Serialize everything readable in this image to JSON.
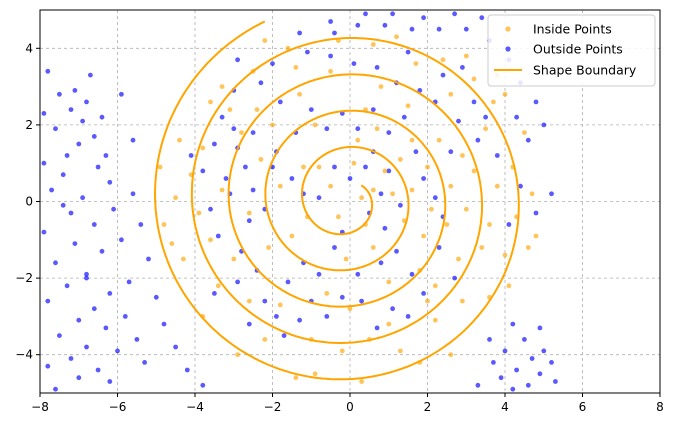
{
  "chart_data": {
    "type": "scatter",
    "title": "",
    "xlabel": "",
    "ylabel": "",
    "xlim": [
      -8,
      8
    ],
    "ylim": [
      -5,
      5
    ],
    "x_ticks": [
      -8,
      -6,
      -4,
      -2,
      0,
      2,
      4,
      6,
      8
    ],
    "y_ticks": [
      -4,
      -2,
      0,
      2,
      4
    ],
    "x_tick_labels": [
      "−8",
      "−6",
      "−4",
      "−2",
      "0",
      "2",
      "4",
      "6",
      "8"
    ],
    "y_tick_labels": [
      "−4",
      "−2",
      "0",
      "2",
      "4"
    ],
    "grid": true,
    "legend_position": "top-right",
    "colors": {
      "inside": "#ffa500",
      "outside": "#0000ff",
      "boundary": "#ffa500",
      "grid": "#b0b0b0"
    },
    "legend": [
      {
        "label": "Inside Points",
        "kind": "point",
        "color": "#ffa500"
      },
      {
        "label": "Outside Points",
        "kind": "point",
        "color": "#0000ff"
      },
      {
        "label": "Shape Boundary",
        "kind": "line",
        "color": "#ffa500"
      }
    ],
    "boundary": {
      "name": "Shape Boundary",
      "shape": "archimedean spiral",
      "center": [
        -0.1,
        0.05
      ],
      "start_point": [
        0.4,
        0.25
      ],
      "end_point": [
        -2.2,
        4.7
      ],
      "approx_spacing_per_turn": 0.95
    },
    "series": [
      {
        "name": "Inside Points",
        "points": [
          [
            0.3,
            0.1
          ],
          [
            0.6,
            0.3
          ],
          [
            -0.5,
            0.4
          ],
          [
            0.1,
            1.0
          ],
          [
            0.4,
            -0.6
          ],
          [
            -0.3,
            -0.4
          ],
          [
            0.9,
            0.8
          ],
          [
            1.1,
            0.2
          ],
          [
            -0.8,
            0.9
          ],
          [
            0.6,
            -1.2
          ],
          [
            -1.1,
            -0.4
          ],
          [
            1.4,
            -0.5
          ],
          [
            0.2,
            1.6
          ],
          [
            -1.2,
            0.9
          ],
          [
            1.3,
            1.1
          ],
          [
            1.6,
            0.3
          ],
          [
            -1.5,
            -0.9
          ],
          [
            -0.1,
            -1.5
          ],
          [
            0.7,
            1.9
          ],
          [
            1.9,
            -0.9
          ],
          [
            -1.8,
            0.4
          ],
          [
            2.0,
            0.9
          ],
          [
            -0.9,
            2.0
          ],
          [
            1.0,
            -2.1
          ],
          [
            2.1,
            -0.2
          ],
          [
            -2.1,
            -1.2
          ],
          [
            0.4,
            2.4
          ],
          [
            2.3,
            1.6
          ],
          [
            -2.3,
            1.1
          ],
          [
            1.8,
            -1.8
          ],
          [
            -0.6,
            -2.4
          ],
          [
            2.5,
            -0.6
          ],
          [
            -2.0,
            2.0
          ],
          [
            2.6,
            0.4
          ],
          [
            -2.6,
            -0.3
          ],
          [
            1.5,
            2.5
          ],
          [
            0.0,
            -2.8
          ],
          [
            2.8,
            -1.5
          ],
          [
            -1.3,
            2.8
          ],
          [
            2.9,
            1.2
          ],
          [
            -2.8,
            1.8
          ],
          [
            0.8,
            3.0
          ],
          [
            -3.0,
            -1.5
          ],
          [
            2.0,
            -2.6
          ],
          [
            3.0,
            -0.2
          ],
          [
            -1.8,
            -2.7
          ],
          [
            3.2,
            0.8
          ],
          [
            -3.3,
            0.3
          ],
          [
            1.0,
            -3.2
          ],
          [
            2.6,
            2.8
          ],
          [
            -0.5,
            3.4
          ],
          [
            3.4,
            -1.2
          ],
          [
            -3.1,
            2.4
          ],
          [
            -2.6,
            -2.6
          ],
          [
            3.5,
            1.9
          ],
          [
            0.5,
            -3.6
          ],
          [
            -3.6,
            -1.0
          ],
          [
            3.6,
            -0.6
          ],
          [
            2.2,
            -3.1
          ],
          [
            -1.4,
            3.5
          ],
          [
            1.7,
            3.6
          ],
          [
            -3.8,
            1.4
          ],
          [
            -1.0,
            -3.6
          ],
          [
            3.8,
            0.4
          ],
          [
            -3.4,
            -2.2
          ],
          [
            2.9,
            -2.6
          ],
          [
            -3.9,
            -0.3
          ],
          [
            3.7,
            2.6
          ],
          [
            -0.2,
            -3.9
          ],
          [
            1.3,
            -3.9
          ],
          [
            4.0,
            -1.4
          ],
          [
            -2.5,
            3.4
          ],
          [
            -4.1,
            0.7
          ],
          [
            3.2,
            3.2
          ],
          [
            -2.2,
            -3.6
          ],
          [
            4.2,
            0.9
          ],
          [
            2.4,
            3.7
          ],
          [
            -4.3,
            -1.5
          ],
          [
            0.6,
            4.1
          ],
          [
            3.6,
            -2.5
          ],
          [
            -3.3,
            3.0
          ],
          [
            4.3,
            -0.4
          ],
          [
            1.8,
            -4.2
          ],
          [
            -4.5,
            0.1
          ],
          [
            -1.6,
            4.0
          ],
          [
            4.5,
            1.8
          ],
          [
            -0.9,
            -4.5
          ],
          [
            4.1,
            -2.2
          ],
          [
            -4.4,
            1.6
          ],
          [
            3.0,
            3.8
          ],
          [
            -2.9,
            -4.0
          ],
          [
            4.6,
            -1.2
          ],
          [
            0.3,
            -4.7
          ],
          [
            -4.6,
            -1.1
          ],
          [
            2.6,
            -4.0
          ],
          [
            -3.8,
            -3.0
          ],
          [
            4.7,
            0.2
          ],
          [
            -1.4,
            -4.6
          ],
          [
            3.8,
            3.3
          ],
          [
            -4.8,
            -0.6
          ],
          [
            1.2,
            4.3
          ],
          [
            -3.6,
            2.6
          ],
          [
            4.0,
            2.8
          ],
          [
            -0.3,
            4.2
          ],
          [
            -2.2,
            4.2
          ],
          [
            4.8,
            -0.9
          ],
          [
            -4.9,
            0.9
          ],
          [
            2.2,
            -2.2
          ],
          [
            -2.4,
            2.4
          ],
          [
            1.6,
            1.6
          ]
        ]
      },
      {
        "name": "Outside Points",
        "points": [
          [
            -7.8,
            3.4
          ],
          [
            -7.5,
            2.8
          ],
          [
            -7.2,
            2.4
          ],
          [
            -6.9,
            2.1
          ],
          [
            -7.6,
            1.9
          ],
          [
            -7.0,
            1.5
          ],
          [
            -7.3,
            1.2
          ],
          [
            -6.6,
            1.7
          ],
          [
            -7.9,
            1.0
          ],
          [
            -6.8,
            2.6
          ],
          [
            -7.4,
            0.7
          ],
          [
            -6.5,
            0.9
          ],
          [
            -7.7,
            0.3
          ],
          [
            -6.9,
            0.1
          ],
          [
            -6.2,
            0.5
          ],
          [
            -7.2,
            -0.3
          ],
          [
            -6.6,
            -0.6
          ],
          [
            -7.9,
            -0.8
          ],
          [
            -6.1,
            -0.2
          ],
          [
            -7.1,
            -1.1
          ],
          [
            -6.4,
            -1.3
          ],
          [
            -7.6,
            -1.6
          ],
          [
            -6.8,
            -1.9
          ],
          [
            -5.9,
            -1.0
          ],
          [
            -7.3,
            -2.2
          ],
          [
            -6.2,
            -2.4
          ],
          [
            -7.8,
            -2.6
          ],
          [
            -6.6,
            -2.8
          ],
          [
            -5.7,
            -2.1
          ],
          [
            -7.0,
            -3.1
          ],
          [
            -6.3,
            -3.3
          ],
          [
            -7.5,
            -3.5
          ],
          [
            -5.8,
            -3.0
          ],
          [
            -6.8,
            -3.8
          ],
          [
            -7.2,
            -4.1
          ],
          [
            -6.0,
            -3.9
          ],
          [
            -7.8,
            -4.3
          ],
          [
            -6.5,
            -4.4
          ],
          [
            -5.5,
            -3.6
          ],
          [
            -7.0,
            -4.6
          ],
          [
            -6.2,
            -4.7
          ],
          [
            -7.6,
            -4.9
          ],
          [
            -5.3,
            -4.2
          ],
          [
            -6.8,
            -2.0
          ],
          [
            -7.4,
            -0.1
          ],
          [
            -6.4,
            2.2
          ],
          [
            -7.1,
            2.9
          ],
          [
            -6.7,
            3.3
          ],
          [
            -7.9,
            2.3
          ],
          [
            -6.3,
            1.2
          ],
          [
            -5.6,
            0.2
          ],
          [
            -5.4,
            -0.6
          ],
          [
            -5.2,
            -1.5
          ],
          [
            -5.0,
            -2.5
          ],
          [
            -4.8,
            -3.2
          ],
          [
            -4.5,
            -3.8
          ],
          [
            -4.2,
            -4.4
          ],
          [
            -3.8,
            -4.8
          ],
          [
            -5.6,
            1.6
          ],
          [
            -5.9,
            2.8
          ],
          [
            -4.1,
            1.2
          ],
          [
            -3.8,
            0.8
          ],
          [
            -3.5,
            1.5
          ],
          [
            -3.2,
            0.6
          ],
          [
            -3.6,
            -0.2
          ],
          [
            -3.0,
            1.9
          ],
          [
            -3.3,
            2.2
          ],
          [
            -2.9,
            1.4
          ],
          [
            -2.7,
            0.9
          ],
          [
            -3.1,
            0.2
          ],
          [
            -2.6,
            -0.5
          ],
          [
            -3.4,
            -0.9
          ],
          [
            -2.8,
            -1.3
          ],
          [
            -2.5,
            1.8
          ],
          [
            -2.4,
            -1.8
          ],
          [
            -2.9,
            -2.1
          ],
          [
            -3.5,
            -2.4
          ],
          [
            -2.2,
            -2.6
          ],
          [
            -1.9,
            -3.0
          ],
          [
            -2.6,
            -3.2
          ],
          [
            -1.7,
            -3.5
          ],
          [
            -1.3,
            -3.1
          ],
          [
            -1.0,
            -2.6
          ],
          [
            -0.6,
            -3.0
          ],
          [
            -0.2,
            -2.5
          ],
          [
            0.3,
            -2.6
          ],
          [
            0.7,
            -3.3
          ],
          [
            1.1,
            -2.8
          ],
          [
            1.5,
            -3.0
          ],
          [
            1.9,
            -2.4
          ],
          [
            -1.6,
            -2.1
          ],
          [
            -1.2,
            -1.6
          ],
          [
            -0.8,
            -1.9
          ],
          [
            -0.4,
            -1.2
          ],
          [
            0.2,
            -1.9
          ],
          [
            0.8,
            -1.6
          ],
          [
            1.2,
            -1.3
          ],
          [
            1.6,
            -1.9
          ],
          [
            2.3,
            -1.2
          ],
          [
            2.7,
            -2.0
          ],
          [
            -1.5,
            0.6
          ],
          [
            -1.9,
            1.3
          ],
          [
            -1.4,
            1.8
          ],
          [
            -1.0,
            2.4
          ],
          [
            -0.6,
            1.9
          ],
          [
            -0.2,
            2.3
          ],
          [
            0.2,
            1.9
          ],
          [
            0.6,
            2.4
          ],
          [
            1.0,
            1.8
          ],
          [
            1.4,
            2.2
          ],
          [
            -0.8,
            0.1
          ],
          [
            -0.4,
            0.9
          ],
          [
            0.0,
            0.6
          ],
          [
            0.4,
            0.9
          ],
          [
            0.8,
            0.2
          ],
          [
            0.5,
            -0.3
          ],
          [
            -0.2,
            -0.8
          ],
          [
            0.9,
            -0.7
          ],
          [
            1.3,
            -0.1
          ],
          [
            -1.2,
            0.2
          ],
          [
            1.7,
            1.3
          ],
          [
            1.9,
            0.6
          ],
          [
            2.2,
            0.1
          ],
          [
            2.4,
            -0.4
          ],
          [
            2.6,
            1.3
          ],
          [
            2.8,
            2.1
          ],
          [
            2.2,
            2.6
          ],
          [
            1.8,
            2.9
          ],
          [
            1.2,
            3.1
          ],
          [
            0.7,
            3.5
          ],
          [
            0.1,
            3.6
          ],
          [
            -0.5,
            3.8
          ],
          [
            -1.1,
            3.9
          ],
          [
            1.5,
            3.9
          ],
          [
            2.4,
            3.3
          ],
          [
            2.9,
            3.5
          ],
          [
            3.2,
            2.6
          ],
          [
            3.5,
            2.2
          ],
          [
            3.3,
            1.6
          ],
          [
            3.8,
            1.2
          ],
          [
            -0.4,
            4.4
          ],
          [
            0.2,
            4.6
          ],
          [
            0.9,
            4.6
          ],
          [
            1.6,
            4.5
          ],
          [
            2.3,
            4.5
          ],
          [
            3.0,
            4.5
          ],
          [
            3.6,
            4.2
          ],
          [
            4.1,
            3.7
          ],
          [
            3.4,
            4.8
          ],
          [
            2.7,
            4.9
          ],
          [
            1.9,
            4.8
          ],
          [
            1.1,
            4.9
          ],
          [
            0.4,
            4.9
          ],
          [
            -0.5,
            4.7
          ],
          [
            -1.3,
            4.4
          ],
          [
            4.4,
            3.1
          ],
          [
            4.8,
            2.6
          ],
          [
            4.3,
            2.2
          ],
          [
            4.6,
            1.6
          ],
          [
            5.0,
            2.0
          ],
          [
            4.1,
            -0.6
          ],
          [
            4.4,
            0.4
          ],
          [
            4.8,
            -0.3
          ],
          [
            5.2,
            0.2
          ],
          [
            4.2,
            -3.2
          ],
          [
            4.5,
            -3.6
          ],
          [
            4.0,
            -3.9
          ],
          [
            4.7,
            -4.1
          ],
          [
            4.3,
            -4.4
          ],
          [
            3.9,
            -4.6
          ],
          [
            4.6,
            -4.8
          ],
          [
            5.0,
            -3.9
          ],
          [
            4.2,
            -4.9
          ],
          [
            3.7,
            -4.2
          ],
          [
            4.9,
            -4.5
          ],
          [
            5.2,
            -4.2
          ],
          [
            3.6,
            -3.6
          ],
          [
            4.9,
            -3.3
          ],
          [
            3.3,
            -4.8
          ],
          [
            5.3,
            -4.7
          ],
          [
            -2.9,
            3.7
          ],
          [
            -3.0,
            2.9
          ],
          [
            -2.3,
            3.1
          ],
          [
            -2.0,
            3.6
          ],
          [
            -2.5,
            0.3
          ],
          [
            -2.2,
            -0.2
          ],
          [
            -2.0,
            0.9
          ],
          [
            -1.8,
            2.6
          ],
          [
            1.0,
            0.8
          ],
          [
            0.6,
            1.3
          ]
        ]
      }
    ]
  }
}
